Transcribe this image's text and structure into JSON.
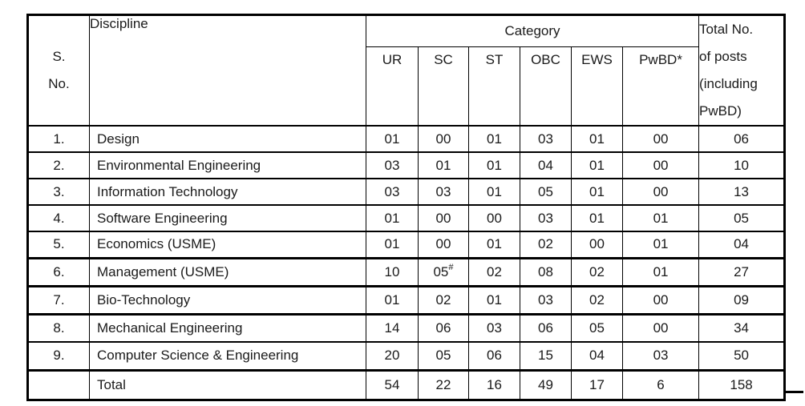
{
  "table": {
    "header": {
      "sno": "S.\nNo.",
      "discipline": "Discipline",
      "category": "Category",
      "category_columns": [
        "UR",
        "SC",
        "ST",
        "OBC",
        "EWS",
        "PwBD*"
      ],
      "total": "Total No.\nof posts\n(including\nPwBD)"
    },
    "rows": [
      {
        "sno": "1.",
        "discipline": "Design",
        "ur": "01",
        "sc": "00",
        "sc_sup": "",
        "st": "01",
        "obc": "03",
        "ews": "01",
        "pwbd": "00",
        "total": "06"
      },
      {
        "sno": "2.",
        "discipline": "Environmental Engineering",
        "ur": "03",
        "sc": "01",
        "sc_sup": "",
        "st": "01",
        "obc": "04",
        "ews": "01",
        "pwbd": "00",
        "total": "10"
      },
      {
        "sno": "3.",
        "discipline": "Information Technology",
        "ur": "03",
        "sc": "03",
        "sc_sup": "",
        "st": "01",
        "obc": "05",
        "ews": "01",
        "pwbd": "00",
        "total": "13"
      },
      {
        "sno": "4.",
        "discipline": "Software Engineering",
        "ur": "01",
        "sc": "00",
        "sc_sup": "",
        "st": "00",
        "obc": "03",
        "ews": "01",
        "pwbd": "01",
        "total": "05"
      },
      {
        "sno": "5.",
        "discipline": "Economics (USME)",
        "ur": "01",
        "sc": "00",
        "sc_sup": "",
        "st": "01",
        "obc": "02",
        "ews": "00",
        "pwbd": "01",
        "total": "04"
      },
      {
        "sno": "6.",
        "discipline": "Management (USME)",
        "ur": "10",
        "sc": "05",
        "sc_sup": "#",
        "st": "02",
        "obc": "08",
        "ews": "02",
        "pwbd": "01",
        "total": "27"
      },
      {
        "sno": "7.",
        "discipline": "Bio-Technology",
        "ur": "01",
        "sc": "02",
        "sc_sup": "",
        "st": "01",
        "obc": "03",
        "ews": "02",
        "pwbd": "00",
        "total": "09"
      },
      {
        "sno": "8.",
        "discipline": "Mechanical Engineering",
        "ur": "14",
        "sc": "06",
        "sc_sup": "",
        "st": "03",
        "obc": "06",
        "ews": "05",
        "pwbd": "00",
        "total": "34"
      },
      {
        "sno": "9.",
        "discipline": "Computer Science & Engineering",
        "ur": "20",
        "sc": "05",
        "sc_sup": "",
        "st": "06",
        "obc": "15",
        "ews": "04",
        "pwbd": "03",
        "total": "50"
      }
    ],
    "total_row": {
      "label": "Total",
      "ur": "54",
      "sc": "22",
      "st": "16",
      "obc": "49",
      "ews": "17",
      "pwbd": "6",
      "total": "158"
    }
  }
}
